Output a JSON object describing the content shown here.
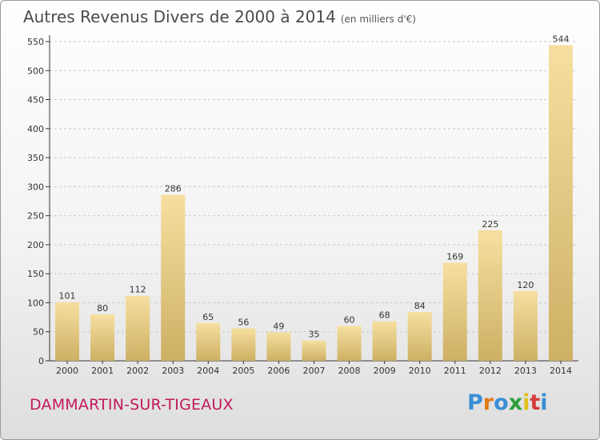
{
  "title": "Autres Revenus Divers de 2000 à 2014",
  "unit": "(en milliers d'€)",
  "commune": "DAMMARTIN-SUR-TIGEAUX",
  "logo": {
    "letters": [
      "P",
      "r",
      "o",
      "x",
      "i",
      "t",
      "i"
    ],
    "colors": [
      "#3a8fd6",
      "#e07b1a",
      "#3a8fd6",
      "#2e9e3a",
      "#e0c21a",
      "#d23c3c",
      "#3a8fd6"
    ]
  },
  "colors": {
    "bar_light": "#f6dfa0",
    "bar_dark": "#cdb064",
    "axis": "#333333",
    "grid": "#c8c8c8",
    "accent": "#c2185b"
  },
  "chart_data": {
    "type": "bar",
    "title": "Autres Revenus Divers de 2000 à 2014",
    "subtitle": "(en milliers d'€)",
    "xlabel": "",
    "ylabel": "",
    "categories": [
      "2000",
      "2001",
      "2002",
      "2003",
      "2004",
      "2005",
      "2006",
      "2007",
      "2008",
      "2009",
      "2010",
      "2011",
      "2012",
      "2013",
      "2014"
    ],
    "values": [
      101,
      80,
      112,
      286,
      65,
      56,
      49,
      35,
      60,
      68,
      84,
      169,
      225,
      120,
      544
    ],
    "ylim": [
      0,
      550
    ],
    "yticks": [
      0,
      50,
      100,
      150,
      200,
      250,
      300,
      350,
      400,
      450,
      500,
      550
    ],
    "grid": "horizontal dashed",
    "data_labels": true
  }
}
